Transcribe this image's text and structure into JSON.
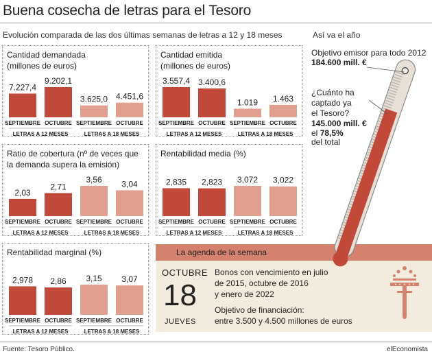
{
  "title": "Buena cosecha de letras para el Tesoro",
  "subtitle": "Evolución comparada de las dos últimas semanas de letras a 12 y 18 meses",
  "colors": {
    "dark": "#c0493a",
    "light": "#e1a08f",
    "agenda_bg": "#f3ebdd",
    "agenda_head": "#d4826e"
  },
  "chart_data": [
    {
      "type": "bar",
      "title": "Cantidad demandada\n(millones de euros)",
      "categories": [
        "SEPTIEMBRE",
        "OCTUBRE",
        "SEPTIEMBRE",
        "OCTUBRE"
      ],
      "groups": [
        "LETRAS A 12 MESES",
        "LETRAS A 18 MESES"
      ],
      "values": [
        7227.4,
        9202.1,
        3625.0,
        4451.6
      ],
      "labels": [
        "7.227,4",
        "9.202,1",
        "3.625,0",
        "4.451,6"
      ]
    },
    {
      "type": "bar",
      "title": "Cantidad emitida\n(millones de euros)",
      "categories": [
        "SEPTIEMBRE",
        "OCTUBRE",
        "SEPTIEMBRE",
        "OCTUBRE"
      ],
      "groups": [
        "LETRAS A 12 MESES",
        "LETRAS A 18 MESES"
      ],
      "values": [
        3557.4,
        3400.6,
        1019,
        1463
      ],
      "labels": [
        "3.557,4",
        "3.400,6",
        "1.019",
        "1.463"
      ]
    },
    {
      "type": "bar",
      "title": "Ratio de cobertura (nº de veces que\nla demanda supera la emisión)",
      "categories": [
        "SEPTIEMBRE",
        "OCTUBRE",
        "SEPTIEMBRE",
        "OCTUBRE"
      ],
      "groups": [
        "LETRAS A 12 MESES",
        "LETRAS A 18 MESES"
      ],
      "values": [
        2.03,
        2.71,
        3.56,
        3.04
      ],
      "labels": [
        "2,03",
        "2,71",
        "3,56",
        "3,04"
      ]
    },
    {
      "type": "bar",
      "title": "Rentabilidad media (%)",
      "categories": [
        "SEPTIEMBRE",
        "OCTUBRE",
        "SEPTIEMBRE",
        "OCTUBRE"
      ],
      "groups": [
        "LETRAS A 12 MESES",
        "LETRAS A 18 MESES"
      ],
      "values": [
        2.835,
        2.823,
        3.072,
        3.022
      ],
      "labels": [
        "2,835",
        "2,823",
        "3,072",
        "3,022"
      ]
    },
    {
      "type": "bar",
      "title": "Rentabilidad marginal (%)",
      "categories": [
        "SEPTIEMBRE",
        "OCTUBRE",
        "SEPTIEMBRE",
        "OCTUBRE"
      ],
      "groups": [
        "LETRAS A 12 MESES",
        "LETRAS A 18 MESES"
      ],
      "values": [
        2.978,
        2.86,
        3.15,
        3.07
      ],
      "labels": [
        "2,978",
        "2,86",
        "3,15",
        "3,07"
      ]
    }
  ],
  "year": {
    "heading": "Así va el año",
    "objective_label": "Objetivo emisor para todo 2012",
    "objective_value": "184.600 mill. €",
    "question": "¿Cuánto ha\ncaptado ya\nel Tesoro?",
    "captured_value": "145.000 mill. €",
    "el": "el",
    "percent": "78,5%",
    "del_total": "del total",
    "fill_fraction": 0.785
  },
  "agenda": {
    "title": "La agenda de la semana",
    "month": "OCTUBRE",
    "day": "18",
    "weekday": "JUEVES",
    "description": "Bonos con vencimiento en julio\nde 2015, octubre de 2016\ny enero de 2022",
    "objective": "Objetivo de financiación:\nentre 3.500 y 4.500 millones de euros",
    "icon": "tesoro-crown-logo"
  },
  "footer": {
    "source": "Fuente: Tesoro Público.",
    "brand": "elEconomista"
  }
}
